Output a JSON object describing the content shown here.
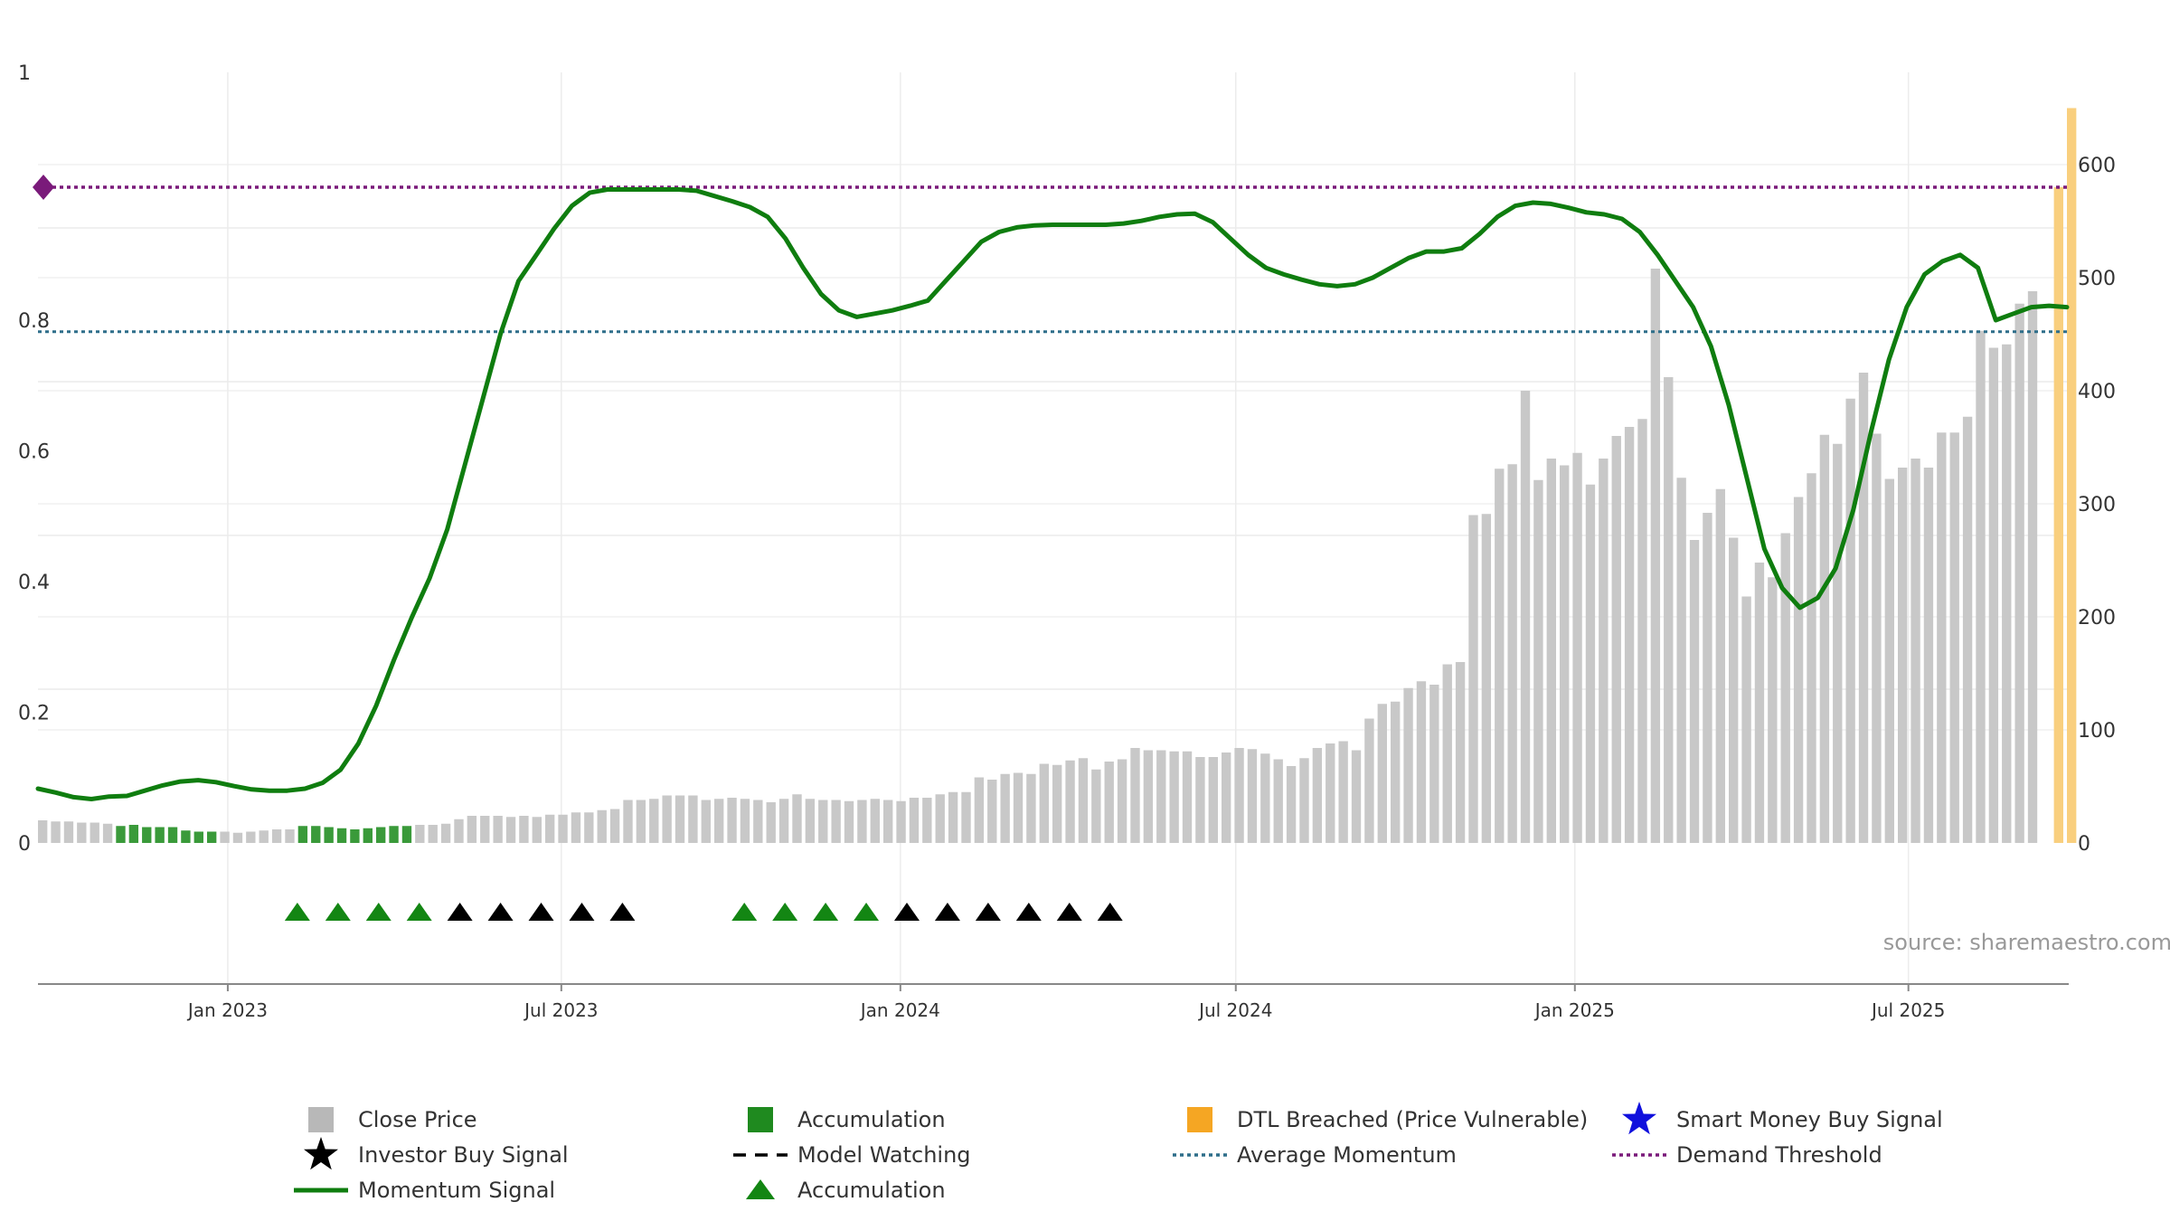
{
  "chart_data": {
    "type": "bar+line",
    "source_label": "source: sharemaestro.com",
    "left_axis": {
      "ticks": [
        "0",
        "0.2",
        "0.4",
        "0.6",
        "0.8",
        "1"
      ],
      "range": [
        0,
        1
      ]
    },
    "right_axis": {
      "ticks": [
        "0",
        "100",
        "200",
        "300",
        "400",
        "500",
        "600"
      ],
      "range": [
        0,
        650
      ]
    },
    "x_ticks": [
      {
        "label": "Jan 2023",
        "date": "2023-01-01"
      },
      {
        "label": "Jul 2023",
        "date": "2023-07-01"
      },
      {
        "label": "Jan 2024",
        "date": "2024-01-01"
      },
      {
        "label": "Jul 2024",
        "date": "2024-07-01"
      },
      {
        "label": "Jan 2025",
        "date": "2025-01-01"
      },
      {
        "label": "Jul 2025",
        "date": "2025-07-01"
      }
    ],
    "x_range": [
      "2022-09-20",
      "2025-09-26"
    ],
    "colors": {
      "close_price": "#c8c8c8",
      "accumulation": "#3a9a3a",
      "dtl_breached": "#f9cf7e",
      "momentum": "#0f7d0f",
      "average_momentum": "#2e6e8a",
      "demand_threshold": "#7a1a7a",
      "smart_money": "#1010dd",
      "investor_buy": "#000000",
      "accumulation_marker": "#138613"
    },
    "average_momentum": 0.665,
    "demand_threshold": 0.853,
    "close_price_weekly": [
      20,
      19,
      19,
      18,
      18,
      17,
      15,
      16,
      14,
      14,
      14,
      11,
      10,
      10,
      10,
      9,
      10,
      11,
      12,
      12,
      15,
      15,
      14,
      13,
      12,
      13,
      14,
      15,
      15,
      16,
      16,
      17,
      21,
      24,
      24,
      24,
      23,
      24,
      23,
      25,
      25,
      27,
      27,
      29,
      30,
      38,
      38,
      39,
      42,
      42,
      42,
      38,
      39,
      40,
      39,
      38,
      36,
      39,
      43,
      39,
      38,
      38,
      37,
      38,
      39,
      38,
      37,
      40,
      40,
      43,
      45,
      45,
      58,
      56,
      61,
      62,
      61,
      70,
      69,
      73,
      75,
      65,
      72,
      74,
      84,
      82,
      82,
      81,
      81,
      76,
      76,
      80,
      84,
      83,
      79,
      74,
      68,
      75,
      84,
      88,
      90,
      82,
      110,
      123,
      125,
      137,
      143,
      140,
      158,
      160,
      290,
      291,
      331,
      335,
      400,
      321,
      340,
      334,
      345,
      317,
      340,
      360,
      368,
      375,
      508,
      412,
      323,
      268,
      292,
      313,
      270,
      218,
      248,
      235,
      274,
      306,
      327,
      361,
      353,
      393,
      416,
      362,
      322,
      332,
      340,
      332,
      363,
      363,
      377,
      453,
      438,
      441,
      477,
      488
    ],
    "accumulation_weeks": [
      6,
      7,
      8,
      9,
      10,
      11,
      12,
      13,
      20,
      21,
      22,
      23,
      24,
      25,
      26,
      27,
      28
    ],
    "dtl_weeks": [
      155,
      156
    ],
    "dtl_levels": [
      580,
      650
    ],
    "momentum_weekly": [
      0.076,
      0.07,
      0.063,
      0.06,
      0.064,
      0.072,
      0.08,
      0.088,
      0.094,
      0.096,
      0.093,
      0.087,
      0.082,
      0.08,
      0.08,
      0.083,
      0.092,
      0.112,
      0.152,
      0.21,
      0.28,
      0.345,
      0.405,
      0.48,
      0.58,
      0.68,
      0.78,
      0.86,
      0.9,
      0.94,
      0.975,
      0.995,
      1.0,
      1.0,
      1.0,
      1.0,
      1.0,
      0.998,
      0.99,
      0.982,
      0.973,
      0.958,
      0.925,
      0.88,
      0.84,
      0.815,
      0.805,
      0.81,
      0.815,
      0.822,
      0.83,
      0.86,
      0.89,
      0.92,
      0.935,
      0.942,
      0.945,
      0.946,
      0.946,
      0.946,
      0.946,
      0.948,
      0.952,
      0.958,
      0.962,
      0.963,
      0.95,
      0.925,
      0.9,
      0.88,
      0.87,
      0.862,
      0.855,
      0.852,
      0.855,
      0.865,
      0.88,
      0.895,
      0.905,
      0.905,
      0.91,
      0.932,
      0.958,
      0.975,
      0.98,
      0.978,
      0.972,
      0.965,
      0.962,
      0.955,
      0.935,
      0.9,
      0.86,
      0.82,
      0.76,
      0.67,
      0.56,
      0.45,
      0.39,
      0.36,
      0.375,
      0.42,
      0.51,
      0.63,
      0.74,
      0.82,
      0.87,
      0.89,
      0.9,
      0.88,
      0.8,
      0.81,
      0.82,
      0.822,
      0.82
    ],
    "markers": {
      "accumulation": [
        2023.7,
        2023.77,
        2023.84,
        2023.91,
        2024.47,
        2024.54,
        2024.61,
        2024.68
      ],
      "investor_buy": [
        2023.98,
        2024.05,
        2024.12,
        2024.19,
        2024.26,
        2024.75,
        2024.82,
        2024.89,
        2024.96,
        2025.03,
        2025.1
      ]
    },
    "legend": [
      {
        "key": "close_price",
        "label": "Close Price",
        "symbol": "square"
      },
      {
        "key": "accumulation",
        "label": "Accumulation",
        "symbol": "square"
      },
      {
        "key": "dtl_breached",
        "label": "DTL Breached (Price Vulnerable)",
        "symbol": "square"
      },
      {
        "key": "smart_money",
        "label": "Smart Money Buy Signal",
        "symbol": "star"
      },
      {
        "key": "investor_buy",
        "label": "Investor Buy Signal",
        "symbol": "star"
      },
      {
        "key": "model_watching",
        "label": "Model Watching",
        "symbol": "dash"
      },
      {
        "key": "average_momentum",
        "label": "Average Momentum",
        "symbol": "dotted"
      },
      {
        "key": "demand_threshold",
        "label": "Demand Threshold",
        "symbol": "dotted"
      },
      {
        "key": "momentum",
        "label": "Momentum Signal",
        "symbol": "line"
      },
      {
        "key": "accumulation_marker",
        "label": "Accumulation",
        "symbol": "triangle"
      }
    ]
  }
}
